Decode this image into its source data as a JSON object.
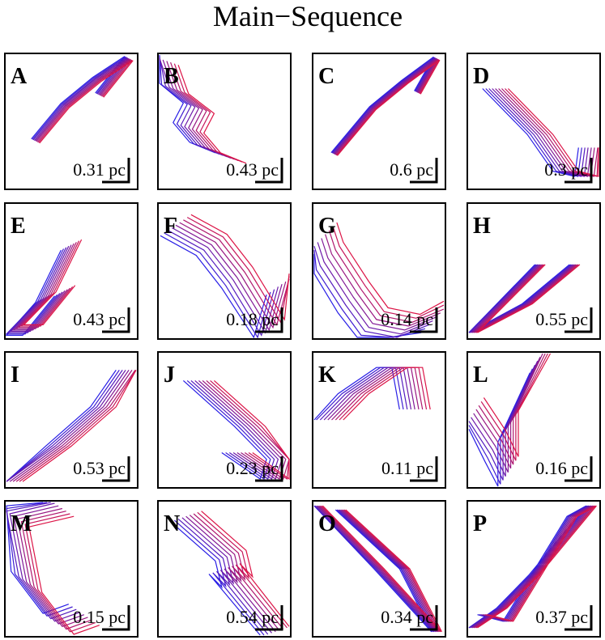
{
  "title": "Main−Sequence",
  "panels": [
    {
      "label": "A",
      "scale": "0.31 pc"
    },
    {
      "label": "B",
      "scale": "0.43 pc"
    },
    {
      "label": "C",
      "scale": "0.6 pc"
    },
    {
      "label": "D",
      "scale": "0.3 pc"
    },
    {
      "label": "E",
      "scale": "0.43 pc"
    },
    {
      "label": "F",
      "scale": "0.18 pc"
    },
    {
      "label": "G",
      "scale": "0.14 pc"
    },
    {
      "label": "H",
      "scale": "0.55 pc"
    },
    {
      "label": "I",
      "scale": "0.53 pc"
    },
    {
      "label": "J",
      "scale": "0.23 pc"
    },
    {
      "label": "K",
      "scale": "0.11 pc"
    },
    {
      "label": "L",
      "scale": "0.16 pc"
    },
    {
      "label": "M",
      "scale": "0.15 pc"
    },
    {
      "label": "N",
      "scale": "0.54 pc"
    },
    {
      "label": "O",
      "scale": "0.34 pc"
    },
    {
      "label": "P",
      "scale": "0.37 pc"
    }
  ]
}
